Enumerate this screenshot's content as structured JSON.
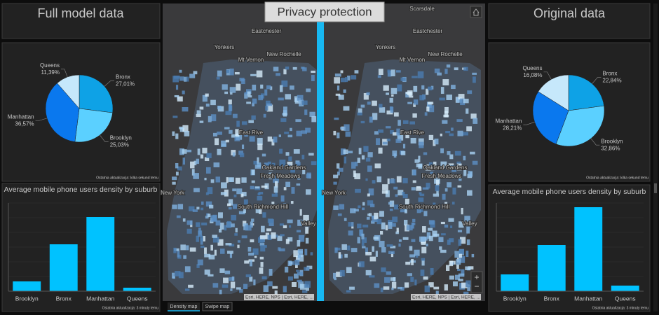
{
  "left_title": "Full model data",
  "right_title": "Original data",
  "map": {
    "title": "Privacy protection",
    "labels": [
      "Yonkers",
      "New Rochelle",
      "Mt Vernon",
      "Eastchester",
      "East Rive",
      "Oakland Gardens",
      "Fresh Meadows",
      "South Richmond Hill",
      "New York",
      "Valley"
    ],
    "right_only_labels": [
      "Scarsdale"
    ],
    "attribution": "Esri, HERE, NPS | Esri, HERE, ...",
    "tabs": [
      "Density map",
      "Swipe map"
    ]
  },
  "chart_data": [
    {
      "type": "pie",
      "categories": [
        "Bronx",
        "Brooklyn",
        "Manhattan",
        "Queens"
      ],
      "values": [
        27.01,
        25.03,
        36.57,
        11.39
      ],
      "value_labels": [
        "27,01%",
        "25,03%",
        "36,57%",
        "11,39%"
      ],
      "colors": [
        "#0ea2e6",
        "#5bd0ff",
        "#0a78ee",
        "#c6e8fb"
      ],
      "footnote": "Ostatnia aktualizacja: kilka sekund temu"
    },
    {
      "type": "bar",
      "title": "Average mobile phone users density by suburb",
      "categories": [
        "Brooklyn",
        "Bronx",
        "Manhattan",
        "Queens"
      ],
      "values": [
        14,
        67,
        106,
        5
      ],
      "ylim": [
        0,
        126
      ],
      "color": "#00c2ff",
      "footnote": "Ostatnia aktualizacja: 3 minuty temu"
    },
    {
      "type": "pie",
      "categories": [
        "Bronx",
        "Brooklyn",
        "Manhattan",
        "Queens"
      ],
      "values": [
        22.84,
        32.86,
        28.21,
        16.08
      ],
      "value_labels": [
        "22,84%",
        "32,86%",
        "28,21%",
        "16,08%"
      ],
      "colors": [
        "#0ea2e6",
        "#5bd0ff",
        "#0a78ee",
        "#c6e8fb"
      ],
      "footnote": "Ostatnia aktualizacja: kilka sekund temu"
    },
    {
      "type": "bar",
      "title": "Average mobile phone users density by suburb",
      "categories": [
        "Brooklyn",
        "Bronx",
        "Manhattan",
        "Queens"
      ],
      "values": [
        24,
        66,
        120,
        8
      ],
      "ylim": [
        0,
        126
      ],
      "color": "#00c2ff",
      "footnote": "Ostatnia aktualizacja: 3 minuty temu"
    }
  ]
}
